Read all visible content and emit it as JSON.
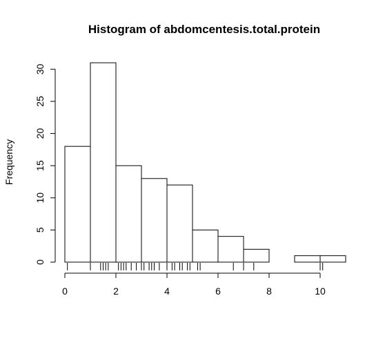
{
  "chart_data": {
    "type": "bar",
    "title": "Histogram of abdomcentesis.total.protein",
    "xlabel": "",
    "ylabel": "Frequency",
    "bins": [
      [
        0,
        1
      ],
      [
        1,
        2
      ],
      [
        2,
        3
      ],
      [
        3,
        4
      ],
      [
        4,
        5
      ],
      [
        5,
        6
      ],
      [
        6,
        7
      ],
      [
        7,
        8
      ],
      [
        8,
        9
      ],
      [
        9,
        10
      ],
      [
        10,
        11
      ]
    ],
    "values": [
      18,
      31,
      15,
      13,
      12,
      5,
      4,
      2,
      0,
      1,
      1
    ],
    "xlim": [
      0,
      11
    ],
    "ylim": [
      0,
      31
    ],
    "x_ticks": [
      0,
      2,
      4,
      6,
      8,
      10
    ],
    "y_ticks": [
      0,
      5,
      10,
      15,
      20,
      25,
      30
    ],
    "x_tick_labels": [
      "0",
      "2",
      "4",
      "6",
      "8",
      "10"
    ],
    "y_tick_labels": [
      "0",
      "5",
      "10",
      "15",
      "20",
      "25",
      "30"
    ],
    "rug": [
      0.1,
      1.0,
      1.4,
      1.5,
      1.6,
      1.7,
      2.1,
      2.2,
      2.3,
      2.4,
      2.6,
      2.8,
      3.0,
      3.1,
      3.3,
      3.4,
      3.5,
      3.7,
      4.0,
      4.2,
      4.3,
      4.5,
      4.6,
      4.8,
      4.9,
      5.2,
      5.3,
      6.6,
      7.0,
      7.4,
      10.0,
      10.1
    ],
    "grid": false,
    "colors": {
      "bar_fill": "#ffffff",
      "stroke": "#000000"
    }
  }
}
